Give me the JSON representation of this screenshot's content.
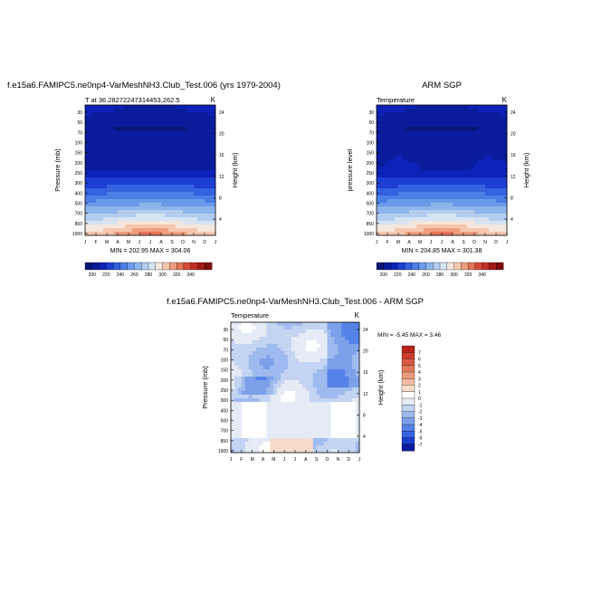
{
  "colors": {
    "model_obs_palette": [
      "#061574",
      "#0a1b9c",
      "#0d22b8",
      "#1c3ed1",
      "#3461e0",
      "#4c7fe6",
      "#6b9ae9",
      "#8db5ec",
      "#b3cdef",
      "#d6e3f3",
      "#f5e6dc",
      "#f5c7ae",
      "#ed9e7f",
      "#e47458",
      "#d64836",
      "#c22e23",
      "#a31818",
      "#7d0a0a"
    ],
    "diff_palette": [
      "#0a1b9c",
      "#1a3ecd",
      "#3564e0",
      "#5582e6",
      "#7ca1ea",
      "#9fbaee",
      "#c3d4f2",
      "#e4ebf5",
      "#ffffff",
      "#f7dccb",
      "#f3bca3",
      "#ec9a7d",
      "#e3785c",
      "#d95a43",
      "#cc3b2d",
      "#b8231d",
      "#98120f",
      "#730808"
    ]
  },
  "chart_data": [
    {
      "type": "heatmap",
      "id": "model",
      "title": "f.e15a6.FAMIPC5.ne0np4-VarMeshNH3.Club_Test.006 (yrs 1979-2004)",
      "left_label": "T at 36.28272247314453,262.5",
      "right_label": "K",
      "xlabel": "",
      "ylabel": "Pressure (mb)",
      "ylabel_right": "Height (km)",
      "x_ticks": [
        "J",
        "F",
        "M",
        "A",
        "M",
        "J",
        "J",
        "A",
        "S",
        "O",
        "N",
        "D",
        "J"
      ],
      "y_ticks": [
        "30",
        "50",
        "70",
        "100",
        "150",
        "200",
        "250",
        "300",
        "400",
        "500",
        "700",
        "850",
        "1000"
      ],
      "y_ticks_right": [
        "24",
        "20",
        "16",
        "12",
        "8",
        "4"
      ],
      "stats": "MIN = 202.95 MAX = 304.06",
      "colorbar_labels": [
        "200",
        "220",
        "240",
        "260",
        "280",
        "300",
        "320",
        "340"
      ],
      "colorbar_min": 195,
      "colorbar_step": 8.5
    },
    {
      "type": "heatmap",
      "id": "obs",
      "title": "ARM SGP",
      "left_label": "Temperature",
      "right_label": "K",
      "xlabel": "",
      "ylabel": "pressure level",
      "ylabel_right": "Height (km)",
      "x_ticks": [
        "J",
        "F",
        "M",
        "A",
        "M",
        "J",
        "J",
        "A",
        "S",
        "O",
        "N",
        "D",
        "J"
      ],
      "y_ticks": [
        "30",
        "50",
        "70",
        "100",
        "150",
        "200",
        "250",
        "300",
        "400",
        "500",
        "700",
        "850",
        "1000"
      ],
      "y_ticks_right": [
        "24",
        "20",
        "16",
        "12",
        "8",
        "4"
      ],
      "stats": "MIN = 204.85 MAX = 301.38",
      "colorbar_labels": [
        "200",
        "220",
        "240",
        "260",
        "280",
        "300",
        "320",
        "340"
      ],
      "colorbar_min": 195,
      "colorbar_step": 8.5
    },
    {
      "type": "heatmap",
      "id": "diff",
      "title": "f.e15a6.FAMIPC5.ne0np4-VarMeshNH3.Club_Test.006 - ARM SGP",
      "left_label": "Temperature",
      "right_label": "K",
      "xlabel": "",
      "ylabel": "Pressure (mb)",
      "ylabel_right": "Height (km)",
      "x_ticks": [
        "J",
        "F",
        "M",
        "A",
        "M",
        "J",
        "J",
        "A",
        "S",
        "O",
        "N",
        "D",
        "J"
      ],
      "y_ticks": [
        "30",
        "50",
        "70",
        "100",
        "150",
        "200",
        "250",
        "300",
        "400",
        "500",
        "700",
        "850",
        "1000"
      ],
      "y_ticks_right": [
        "24",
        "20",
        "16",
        "12",
        "8",
        "4"
      ],
      "stats": "MIN =  -5.45 MAX =   3.46",
      "colorbar_labels": [
        "7",
        "6",
        "5",
        "4",
        "3",
        "2",
        "1",
        "0",
        "-1",
        "-2",
        "-3",
        "-4",
        "-5",
        "-6",
        "-7"
      ],
      "colorbar_min": -8,
      "colorbar_step": 1
    }
  ]
}
